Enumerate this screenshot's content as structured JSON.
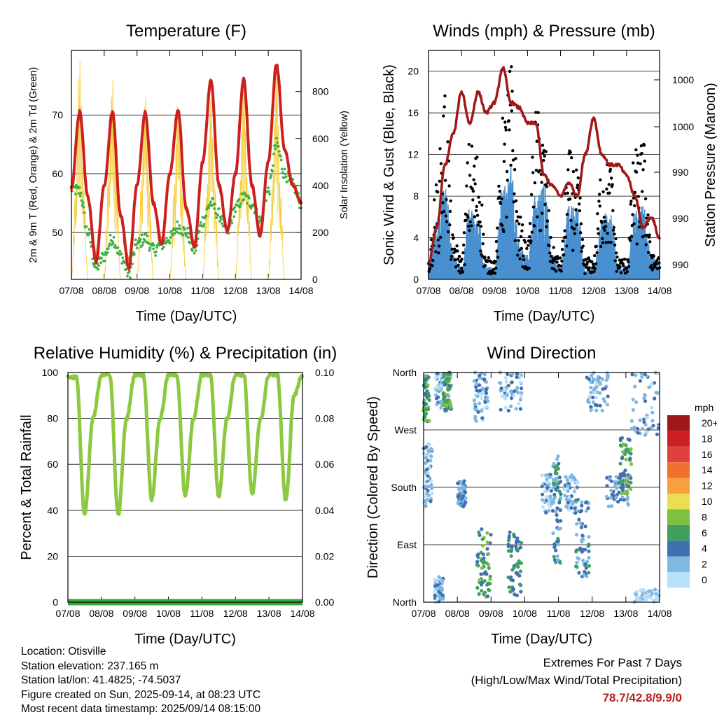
{
  "colors": {
    "temp_2m": "#cc2020",
    "temp_9m": "#f07030",
    "dewpoint": "#40b040",
    "solar": "#f5d040",
    "wind": "#4a90d0",
    "gust": "#000000",
    "pressure": "#a01818",
    "rh": "#8cc840",
    "precip": "#38a838",
    "extremes": "#b22222"
  },
  "x_tick_labels": [
    "07/08",
    "08/08",
    "09/08",
    "10/08",
    "11/08",
    "12/08",
    "13/08",
    "14/08"
  ],
  "x_axis_label": "Time (Day/UTC)",
  "chart_data": [
    {
      "type": "line",
      "title": "Temperature (F)",
      "xlabel": "Time (Day/UTC)",
      "ylabel": "2m & 9m T (Red, Orange) & 2m Td (Green)",
      "y2label": "Solar Insolation (Yellow)",
      "ylim": [
        42,
        81
      ],
      "y2lim": [
        0,
        975
      ],
      "yticks": [
        50,
        60,
        70
      ],
      "y2ticks": [
        0,
        200,
        400,
        600,
        800
      ],
      "grid": "horizontal",
      "series": [
        {
          "name": "2m T (Red)",
          "color": "#cc2020",
          "hours": [
            0,
            6,
            12,
            18,
            24,
            30,
            36,
            42,
            48,
            54,
            60,
            66,
            72,
            78,
            84,
            90,
            96,
            102,
            108,
            114,
            120,
            126,
            132,
            138,
            144,
            150,
            156,
            162,
            168
          ],
          "values": [
            57.5,
            70.5,
            56,
            45,
            58,
            70.5,
            53,
            44,
            58,
            70.5,
            55,
            48,
            60,
            70.8,
            54,
            47.5,
            62,
            76,
            58,
            50,
            60,
            76,
            58,
            49.5,
            62,
            78.7,
            64,
            58,
            55
          ]
        },
        {
          "name": "9m T (Orange)",
          "color": "#f07030",
          "hours": [
            0,
            6,
            12,
            18,
            24,
            30,
            36,
            42,
            48,
            54,
            60,
            66,
            72,
            78,
            84,
            90,
            96,
            102,
            108,
            114,
            120,
            126,
            132,
            138,
            144,
            150,
            156,
            162,
            168
          ],
          "values": [
            57.3,
            70,
            56,
            46,
            58,
            70,
            53,
            45,
            58,
            70,
            55,
            48.5,
            60,
            70.3,
            54,
            48,
            62,
            75.5,
            58,
            50.5,
            60,
            75.5,
            58,
            50,
            62,
            78,
            64,
            58,
            55
          ]
        },
        {
          "name": "2m Td (Green)",
          "color": "#40b040",
          "hours": [
            0,
            6,
            12,
            18,
            24,
            30,
            36,
            42,
            48,
            54,
            60,
            66,
            72,
            78,
            84,
            90,
            96,
            102,
            108,
            114,
            120,
            126,
            132,
            138,
            144,
            150,
            156,
            162,
            168
          ],
          "values": [
            57.5,
            57,
            50,
            44,
            46,
            49,
            46,
            43,
            48,
            49,
            47,
            48,
            49,
            51,
            50,
            47,
            52,
            55,
            53,
            50,
            54,
            56,
            55,
            52,
            57,
            65,
            60,
            58,
            55
          ]
        },
        {
          "name": "Solar Insolation (Yellow)",
          "color": "#f5d040",
          "axis": "y2",
          "hours": [
            0,
            3,
            6,
            9,
            12,
            24,
            27,
            30,
            33,
            36,
            48,
            51,
            54,
            57,
            60,
            72,
            75,
            78,
            81,
            84,
            96,
            99,
            102,
            105,
            108,
            120,
            123,
            126,
            129,
            132,
            144,
            147,
            150,
            153,
            156
          ],
          "values": [
            0,
            380,
            940,
            400,
            0,
            0,
            430,
            860,
            420,
            0,
            0,
            400,
            800,
            380,
            0,
            0,
            380,
            780,
            360,
            0,
            0,
            380,
            800,
            390,
            0,
            0,
            390,
            880,
            400,
            0,
            0,
            410,
            930,
            380,
            0
          ]
        }
      ]
    },
    {
      "type": "line",
      "title": "Winds (mph) & Pressure (mb)",
      "xlabel": "Time (Day/UTC)",
      "ylabel": "Sonic Wind & Gust (Blue, Black)",
      "y2label": "Station Pressure (Maroon)",
      "ylim": [
        0,
        22
      ],
      "yticks": [
        0,
        4,
        8,
        12,
        16,
        20
      ],
      "y2ticks": [
        "990",
        "990",
        "990",
        "1000",
        "1000"
      ],
      "grid": "horizontal",
      "series": [
        {
          "name": "Sonic Wind (Blue)",
          "color": "#4a90d0",
          "hours": [
            0,
            6,
            12,
            18,
            24,
            30,
            36,
            42,
            48,
            54,
            60,
            66,
            72,
            78,
            84,
            90,
            96,
            102,
            108,
            114,
            120,
            126,
            132,
            138,
            144,
            150,
            156,
            162,
            168
          ],
          "values": [
            1,
            5,
            8,
            2,
            1,
            6,
            5,
            1,
            1,
            8,
            9,
            3,
            2,
            7,
            8,
            2,
            1,
            6,
            6,
            1,
            1,
            5,
            6,
            1,
            1,
            6,
            6,
            2,
            1
          ]
        },
        {
          "name": "Gust (Black)",
          "color": "#000000",
          "hours": [
            0,
            6,
            12,
            18,
            24,
            30,
            36,
            42,
            48,
            54,
            60,
            66,
            72,
            78,
            84,
            90,
            96,
            102,
            108,
            114,
            120,
            126,
            132,
            138,
            144,
            150,
            156,
            162,
            168
          ],
          "values": [
            2,
            9,
            18,
            4,
            2,
            13,
            12,
            2,
            2,
            15,
            20,
            6,
            3,
            16,
            14,
            3,
            2,
            12,
            10,
            2,
            2,
            11,
            11,
            2,
            2,
            12,
            13,
            3,
            2
          ]
        },
        {
          "name": "Station Pressure (Maroon)",
          "color": "#a01818",
          "hours": [
            0,
            6,
            12,
            18,
            24,
            30,
            36,
            42,
            48,
            54,
            60,
            66,
            72,
            78,
            84,
            90,
            96,
            102,
            108,
            114,
            120,
            126,
            132,
            138,
            144,
            150,
            156,
            162,
            168
          ],
          "values_plot_mph": [
            1.5,
            5,
            11,
            14,
            18,
            15,
            18,
            16,
            17,
            20.3,
            17,
            16.5,
            15,
            15,
            10,
            9,
            8,
            9.3,
            8,
            12,
            15.5,
            12,
            11,
            11,
            10,
            8,
            5,
            6,
            4
          ]
        }
      ]
    },
    {
      "type": "line",
      "title": "Relative Humidity (%) & Precipitation (in)",
      "xlabel": "Time (Day/UTC)",
      "ylabel": "Percent & Total Rainfall",
      "ylim": [
        0,
        100
      ],
      "y2lim": [
        0,
        0.1
      ],
      "yticks": [
        0,
        20,
        40,
        60,
        80,
        100
      ],
      "y2ticks": [
        "0.00",
        "0.02",
        "0.04",
        "0.06",
        "0.08",
        "0.10"
      ],
      "grid": "horizontal",
      "series": [
        {
          "name": "Relative Humidity",
          "color": "#8cc840",
          "hours": [
            0,
            6,
            12,
            18,
            24,
            30,
            36,
            42,
            48,
            54,
            60,
            66,
            72,
            78,
            84,
            90,
            96,
            102,
            108,
            114,
            120,
            126,
            132,
            138,
            144,
            150,
            156,
            162,
            168
          ],
          "values": [
            98,
            98,
            38,
            80,
            99,
            99,
            38,
            80,
            99,
            99,
            45,
            80,
            99,
            99,
            46,
            80,
            99,
            99,
            46,
            80,
            99,
            99,
            47,
            80,
            99,
            99,
            44,
            90,
            99
          ]
        },
        {
          "name": "Total Rainfall",
          "color": "#38a838",
          "axis": "y2",
          "hours": [
            0,
            168
          ],
          "values": [
            0,
            0
          ]
        }
      ]
    },
    {
      "type": "scatter",
      "title": "Wind Direction",
      "xlabel": "Time (Day/UTC)",
      "ylabel": "Direction (Colored By Speed)",
      "ytick_labels": [
        "North",
        "East",
        "South",
        "West",
        "North"
      ],
      "ylim": [
        0,
        360
      ],
      "grid": "horizontal",
      "colorbar_label": "mph",
      "colorbar_ticks": [
        "20+",
        "18",
        "16",
        "14",
        "12",
        "10",
        "8",
        "6",
        "4",
        "2",
        "0"
      ],
      "colorbar_colors": [
        "#a01818",
        "#cc2020",
        "#e04040",
        "#f07030",
        "#f8a040",
        "#e8e050",
        "#80c040",
        "#40a060",
        "#4070b0",
        "#80b8e0",
        "#b8e0f8"
      ],
      "clusters": [
        {
          "hour_range": [
            0,
            4
          ],
          "dir_range": [
            280,
            355
          ],
          "speed": 6
        },
        {
          "hour_range": [
            0,
            6
          ],
          "dir_range": [
            150,
            250
          ],
          "speed": 2
        },
        {
          "hour_range": [
            8,
            20
          ],
          "dir_range": [
            300,
            360
          ],
          "speed": 2
        },
        {
          "hour_range": [
            8,
            14
          ],
          "dir_range": [
            0,
            40
          ],
          "speed": 2
        },
        {
          "hour_range": [
            14,
            20
          ],
          "dir_range": [
            300,
            360
          ],
          "speed": 6
        },
        {
          "hour_range": [
            24,
            30
          ],
          "dir_range": [
            150,
            190
          ],
          "speed": 3
        },
        {
          "hour_range": [
            38,
            48
          ],
          "dir_range": [
            5,
            120
          ],
          "speed": 6
        },
        {
          "hour_range": [
            36,
            46
          ],
          "dir_range": [
            280,
            360
          ],
          "speed": 2
        },
        {
          "hour_range": [
            60,
            70
          ],
          "dir_range": [
            10,
            110
          ],
          "speed": 5
        },
        {
          "hour_range": [
            54,
            70
          ],
          "dir_range": [
            300,
            360
          ],
          "speed": 2
        },
        {
          "hour_range": [
            84,
            96
          ],
          "dir_range": [
            140,
            200
          ],
          "speed": 2
        },
        {
          "hour_range": [
            92,
            98
          ],
          "dir_range": [
            60,
            230
          ],
          "speed": 4
        },
        {
          "hour_range": [
            100,
            110
          ],
          "dir_range": [
            140,
            200
          ],
          "speed": 2
        },
        {
          "hour_range": [
            108,
            118
          ],
          "dir_range": [
            40,
            160
          ],
          "speed": 4
        },
        {
          "hour_range": [
            116,
            132
          ],
          "dir_range": [
            300,
            360
          ],
          "speed": 2
        },
        {
          "hour_range": [
            130,
            146
          ],
          "dir_range": [
            150,
            200
          ],
          "speed": 3
        },
        {
          "hour_range": [
            140,
            148
          ],
          "dir_range": [
            170,
            260
          ],
          "speed": 6
        },
        {
          "hour_range": [
            148,
            168
          ],
          "dir_range": [
            260,
            360
          ],
          "speed": 2
        },
        {
          "hour_range": [
            150,
            168
          ],
          "dir_range": [
            0,
            20
          ],
          "speed": 1
        }
      ]
    }
  ],
  "footer": {
    "location": "Location: Otisville",
    "elevation": "Station elevation: 237.165 m",
    "latlon": "Station lat/lon: 41.4825; -74.5037",
    "created": "Figure created on Sun, 2025-09-14, at 08:23 UTC",
    "recent": "Most recent data timestamp: 2025/09/14 08:15:00"
  },
  "extremes": {
    "title": "Extremes For Past 7 Days",
    "subtitle": "(High/Low/Max Wind/Total Precipitation)",
    "values": "78.7/42.8/9.9/0"
  }
}
